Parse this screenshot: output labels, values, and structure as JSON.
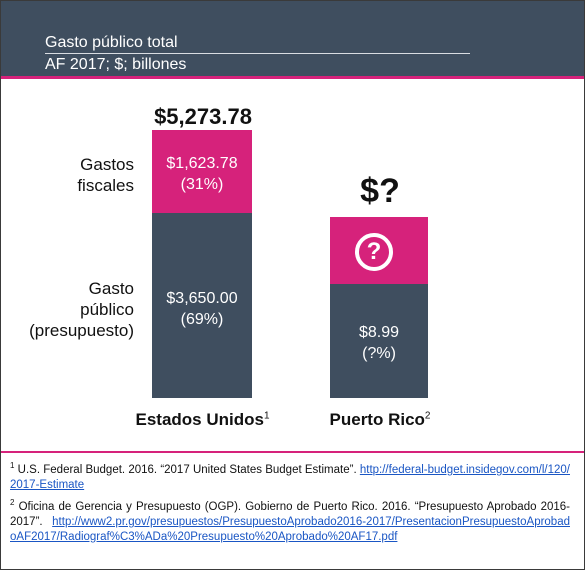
{
  "header": {
    "title": "Gasto público total",
    "subtitle": "AF 2017; $; billones"
  },
  "chart_data": {
    "type": "bar",
    "stacked": true,
    "categories": [
      "Estados Unidos",
      "Puerto Rico"
    ],
    "category_footnote_marks": [
      "1",
      "2"
    ],
    "series": [
      {
        "name": "Gasto público (presupuesto)",
        "values": [
          3650.0,
          8.99
        ],
        "color": "#3f4e5f",
        "value_labels": [
          "$3,650.00",
          "$8.99"
        ],
        "share_labels": [
          "(69%)",
          "(?%)"
        ]
      },
      {
        "name": "Gastos fiscales",
        "values": [
          1623.78,
          null
        ],
        "color": "#d6227b",
        "value_labels": [
          "$1,623.78",
          "?"
        ],
        "share_labels": [
          "(31%)",
          ""
        ]
      }
    ],
    "totals": [
      "$5,273.78",
      "$?"
    ],
    "row_labels": {
      "fiscal": [
        "Gastos",
        "fiscales"
      ],
      "budget": [
        "Gasto",
        "público",
        "(presupuesto)"
      ]
    }
  },
  "footnotes": [
    {
      "mark": "1",
      "text": "U.S. Federal Budget. 2016. “2017 United States Budget Estimate”. ",
      "link": "http://federal-budget.insidegov.com/l/120/2017-Estimate"
    },
    {
      "mark": "2",
      "text": "Oficina de Gerencia y Presupuesto (OGP). Gobierno de Puerto Rico. 2016. “Presupuesto Aprobado 2016-2017”. ",
      "link": "http://www2.pr.gov/presupuestos/PresupuestoAprobado2016-2017/PresentacionPresupuestoAprobadoAF2017/Radiograf%C3%ADa%20Presupuesto%20Aprobado%20AF17.pdf"
    }
  ],
  "colors": {
    "header": "#3f4e5f",
    "accent": "#d6227b"
  },
  "icons": {
    "unknown": "question-circle-icon"
  }
}
